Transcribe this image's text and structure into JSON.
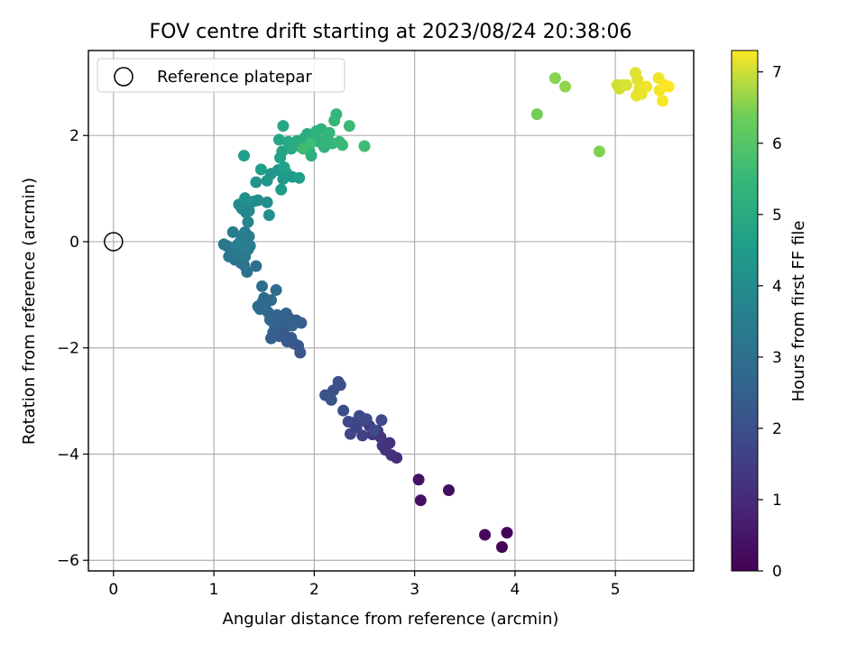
{
  "chart_data": {
    "type": "scatter",
    "title": "FOV centre drift starting at 2023/08/24 20:38:06",
    "xlabel": "Angular distance from reference (arcmin)",
    "ylabel": "Rotation from reference (arcmin)",
    "xlim": [
      -0.25,
      5.78
    ],
    "ylim": [
      -6.2,
      3.6
    ],
    "xticks": [
      0,
      1,
      2,
      3,
      4,
      5
    ],
    "yticks": [
      -6,
      -4,
      -2,
      0,
      2
    ],
    "xtick_labels": [
      "0",
      "1",
      "2",
      "3",
      "4",
      "5"
    ],
    "ytick_labels": [
      "−6",
      "−4",
      "−2",
      "0",
      "2"
    ],
    "grid": true,
    "legend": {
      "label": "Reference platepar",
      "placement": "top-left"
    },
    "reference_point": {
      "x": 0,
      "y": 0
    },
    "colorbar": {
      "label": "Hours from first FF file",
      "colormap": "viridis",
      "range": [
        0,
        7.3
      ],
      "ticks": [
        0,
        1,
        2,
        3,
        4,
        5,
        6,
        7
      ],
      "tick_labels": [
        "0",
        "1",
        "2",
        "3",
        "4",
        "5",
        "6",
        "7"
      ]
    },
    "points": [
      {
        "x": 3.87,
        "y": -5.75,
        "h": 0.05
      },
      {
        "x": 3.92,
        "y": -5.48,
        "h": 0.1
      },
      {
        "x": 3.7,
        "y": -5.52,
        "h": 0.15
      },
      {
        "x": 3.34,
        "y": -4.68,
        "h": 0.3
      },
      {
        "x": 3.06,
        "y": -4.87,
        "h": 0.35
      },
      {
        "x": 3.04,
        "y": -4.48,
        "h": 0.4
      },
      {
        "x": 2.82,
        "y": -4.07,
        "h": 1.05
      },
      {
        "x": 2.77,
        "y": -4.02,
        "h": 1.1
      },
      {
        "x": 2.75,
        "y": -3.79,
        "h": 1.15
      },
      {
        "x": 2.68,
        "y": -3.84,
        "h": 1.2
      },
      {
        "x": 2.71,
        "y": -3.92,
        "h": 1.25
      },
      {
        "x": 2.66,
        "y": -3.68,
        "h": 1.3
      },
      {
        "x": 2.63,
        "y": -3.56,
        "h": 1.35
      },
      {
        "x": 2.58,
        "y": -3.63,
        "h": 1.4
      },
      {
        "x": 2.55,
        "y": -3.47,
        "h": 1.45
      },
      {
        "x": 2.51,
        "y": -3.38,
        "h": 1.5
      },
      {
        "x": 2.48,
        "y": -3.65,
        "h": 1.55
      },
      {
        "x": 2.46,
        "y": -3.3,
        "h": 1.6
      },
      {
        "x": 2.42,
        "y": -3.5,
        "h": 1.65
      },
      {
        "x": 2.39,
        "y": -3.41,
        "h": 1.7
      },
      {
        "x": 2.36,
        "y": -3.62,
        "h": 1.75
      },
      {
        "x": 2.34,
        "y": -3.39,
        "h": 1.8
      },
      {
        "x": 2.67,
        "y": -3.36,
        "h": 1.82
      },
      {
        "x": 2.6,
        "y": -3.55,
        "h": 1.85
      },
      {
        "x": 2.52,
        "y": -3.34,
        "h": 1.88
      },
      {
        "x": 2.45,
        "y": -3.28,
        "h": 1.9
      },
      {
        "x": 2.29,
        "y": -3.18,
        "h": 1.95
      },
      {
        "x": 2.24,
        "y": -2.64,
        "h": 2.0
      },
      {
        "x": 2.26,
        "y": -2.7,
        "h": 2.02
      },
      {
        "x": 2.19,
        "y": -2.8,
        "h": 2.05
      },
      {
        "x": 2.17,
        "y": -2.98,
        "h": 2.08
      },
      {
        "x": 2.11,
        "y": -2.89,
        "h": 2.1
      },
      {
        "x": 1.86,
        "y": -2.09,
        "h": 2.2
      },
      {
        "x": 1.84,
        "y": -1.96,
        "h": 2.22
      },
      {
        "x": 1.8,
        "y": -1.92,
        "h": 2.25
      },
      {
        "x": 1.77,
        "y": -1.81,
        "h": 2.28
      },
      {
        "x": 1.73,
        "y": -1.88,
        "h": 2.3
      },
      {
        "x": 1.7,
        "y": -1.73,
        "h": 2.32
      },
      {
        "x": 1.68,
        "y": -1.66,
        "h": 2.35
      },
      {
        "x": 1.65,
        "y": -1.78,
        "h": 2.38
      },
      {
        "x": 1.62,
        "y": -1.58,
        "h": 2.4
      },
      {
        "x": 1.59,
        "y": -1.71,
        "h": 2.42
      },
      {
        "x": 1.57,
        "y": -1.82,
        "h": 2.45
      },
      {
        "x": 1.87,
        "y": -1.53,
        "h": 2.48
      },
      {
        "x": 1.82,
        "y": -1.48,
        "h": 2.5
      },
      {
        "x": 1.78,
        "y": -1.58,
        "h": 2.52
      },
      {
        "x": 1.74,
        "y": -1.42,
        "h": 2.55
      },
      {
        "x": 1.72,
        "y": -1.35,
        "h": 2.58
      },
      {
        "x": 1.69,
        "y": -1.5,
        "h": 2.6
      },
      {
        "x": 1.66,
        "y": -1.44,
        "h": 2.62
      },
      {
        "x": 1.63,
        "y": -1.38,
        "h": 2.65
      },
      {
        "x": 1.6,
        "y": -1.55,
        "h": 2.68
      },
      {
        "x": 1.56,
        "y": -1.47,
        "h": 2.7
      },
      {
        "x": 1.54,
        "y": -1.33,
        "h": 2.72
      },
      {
        "x": 1.51,
        "y": -1.22,
        "h": 2.75
      },
      {
        "x": 1.48,
        "y": -1.15,
        "h": 2.78
      },
      {
        "x": 1.46,
        "y": -1.27,
        "h": 2.8
      },
      {
        "x": 1.44,
        "y": -1.22,
        "h": 2.82
      },
      {
        "x": 1.5,
        "y": -1.06,
        "h": 2.84
      },
      {
        "x": 1.57,
        "y": -1.1,
        "h": 2.86
      },
      {
        "x": 1.62,
        "y": -0.91,
        "h": 2.88
      },
      {
        "x": 1.48,
        "y": -0.84,
        "h": 2.9
      },
      {
        "x": 1.42,
        "y": -0.46,
        "h": 3.0
      },
      {
        "x": 1.33,
        "y": -0.57,
        "h": 3.05
      },
      {
        "x": 1.3,
        "y": -0.44,
        "h": 3.08
      },
      {
        "x": 1.27,
        "y": -0.4,
        "h": 3.1
      },
      {
        "x": 1.24,
        "y": -0.3,
        "h": 3.12
      },
      {
        "x": 1.21,
        "y": -0.34,
        "h": 3.15
      },
      {
        "x": 1.18,
        "y": -0.22,
        "h": 3.18
      },
      {
        "x": 1.15,
        "y": -0.28,
        "h": 3.2
      },
      {
        "x": 1.13,
        "y": -0.08,
        "h": 3.22
      },
      {
        "x": 1.1,
        "y": -0.05,
        "h": 3.25
      },
      {
        "x": 1.16,
        "y": -0.12,
        "h": 3.28
      },
      {
        "x": 1.21,
        "y": -0.18,
        "h": 3.3
      },
      {
        "x": 1.26,
        "y": -0.24,
        "h": 3.32
      },
      {
        "x": 1.31,
        "y": -0.28,
        "h": 3.35
      },
      {
        "x": 1.34,
        "y": -0.15,
        "h": 3.38
      },
      {
        "x": 1.36,
        "y": -0.08,
        "h": 3.4
      },
      {
        "x": 1.33,
        "y": 0.05,
        "h": 3.42
      },
      {
        "x": 1.29,
        "y": 0.12,
        "h": 3.45
      },
      {
        "x": 1.31,
        "y": 0.18,
        "h": 3.48
      },
      {
        "x": 1.35,
        "y": 0.1,
        "h": 3.5
      },
      {
        "x": 1.19,
        "y": 0.18,
        "h": 3.52
      },
      {
        "x": 1.27,
        "y": 0.02,
        "h": 3.55
      },
      {
        "x": 1.24,
        "y": -0.05,
        "h": 3.58
      },
      {
        "x": 1.34,
        "y": 0.37,
        "h": 3.7
      },
      {
        "x": 1.32,
        "y": 0.55,
        "h": 3.75
      },
      {
        "x": 1.28,
        "y": 0.62,
        "h": 3.8
      },
      {
        "x": 1.35,
        "y": 0.58,
        "h": 3.85
      },
      {
        "x": 1.25,
        "y": 0.7,
        "h": 3.9
      },
      {
        "x": 1.3,
        "y": 0.75,
        "h": 3.95
      },
      {
        "x": 1.4,
        "y": 0.76,
        "h": 4.0
      },
      {
        "x": 1.44,
        "y": 0.78,
        "h": 4.02
      },
      {
        "x": 1.53,
        "y": 0.74,
        "h": 4.05
      },
      {
        "x": 1.55,
        "y": 0.5,
        "h": 4.08
      },
      {
        "x": 1.31,
        "y": 0.82,
        "h": 4.1
      },
      {
        "x": 1.42,
        "y": 1.12,
        "h": 4.2
      },
      {
        "x": 1.53,
        "y": 1.15,
        "h": 4.25
      },
      {
        "x": 1.57,
        "y": 1.28,
        "h": 4.3
      },
      {
        "x": 1.64,
        "y": 1.35,
        "h": 4.35
      },
      {
        "x": 1.69,
        "y": 1.18,
        "h": 4.4
      },
      {
        "x": 1.72,
        "y": 1.3,
        "h": 4.45
      },
      {
        "x": 1.78,
        "y": 1.22,
        "h": 4.5
      },
      {
        "x": 1.67,
        "y": 0.98,
        "h": 4.52
      },
      {
        "x": 1.47,
        "y": 1.36,
        "h": 4.55
      },
      {
        "x": 1.3,
        "y": 1.62,
        "h": 4.58
      },
      {
        "x": 1.85,
        "y": 1.2,
        "h": 4.62
      },
      {
        "x": 1.7,
        "y": 1.4,
        "h": 4.65
      },
      {
        "x": 1.66,
        "y": 1.58,
        "h": 4.7
      },
      {
        "x": 1.68,
        "y": 1.7,
        "h": 4.75
      },
      {
        "x": 1.65,
        "y": 1.92,
        "h": 4.8
      },
      {
        "x": 1.69,
        "y": 2.18,
        "h": 4.85
      },
      {
        "x": 1.74,
        "y": 1.88,
        "h": 4.9
      },
      {
        "x": 1.77,
        "y": 1.75,
        "h": 4.95
      },
      {
        "x": 1.8,
        "y": 1.82,
        "h": 5.0
      },
      {
        "x": 1.83,
        "y": 1.9,
        "h": 5.03
      },
      {
        "x": 1.87,
        "y": 1.78,
        "h": 5.06
      },
      {
        "x": 1.9,
        "y": 1.95,
        "h": 5.09
      },
      {
        "x": 1.93,
        "y": 2.03,
        "h": 5.12
      },
      {
        "x": 1.95,
        "y": 1.72,
        "h": 5.15
      },
      {
        "x": 1.97,
        "y": 1.62,
        "h": 5.18
      },
      {
        "x": 2.0,
        "y": 1.98,
        "h": 5.21
      },
      {
        "x": 2.02,
        "y": 2.08,
        "h": 5.24
      },
      {
        "x": 2.05,
        "y": 1.88,
        "h": 5.27
      },
      {
        "x": 2.07,
        "y": 2.12,
        "h": 5.3
      },
      {
        "x": 2.1,
        "y": 1.78,
        "h": 5.33
      },
      {
        "x": 2.12,
        "y": 1.95,
        "h": 5.36
      },
      {
        "x": 2.15,
        "y": 2.05,
        "h": 5.39
      },
      {
        "x": 2.18,
        "y": 1.85,
        "h": 5.42
      },
      {
        "x": 2.2,
        "y": 2.28,
        "h": 5.45
      },
      {
        "x": 2.22,
        "y": 2.4,
        "h": 5.48
      },
      {
        "x": 2.25,
        "y": 1.88,
        "h": 5.5
      },
      {
        "x": 2.28,
        "y": 1.82,
        "h": 5.53
      },
      {
        "x": 2.35,
        "y": 2.18,
        "h": 5.56
      },
      {
        "x": 2.5,
        "y": 1.8,
        "h": 5.6
      },
      {
        "x": 1.96,
        "y": 1.85,
        "h": 5.62
      },
      {
        "x": 1.89,
        "y": 1.75,
        "h": 5.65
      },
      {
        "x": 4.22,
        "y": 2.4,
        "h": 6.4
      },
      {
        "x": 4.4,
        "y": 3.08,
        "h": 6.55
      },
      {
        "x": 4.5,
        "y": 2.92,
        "h": 6.6
      },
      {
        "x": 4.84,
        "y": 1.7,
        "h": 6.5
      },
      {
        "x": 5.02,
        "y": 2.95,
        "h": 7.0
      },
      {
        "x": 5.04,
        "y": 2.88,
        "h": 7.02
      },
      {
        "x": 5.08,
        "y": 2.95,
        "h": 7.05
      },
      {
        "x": 5.11,
        "y": 2.95,
        "h": 7.07
      },
      {
        "x": 5.2,
        "y": 3.18,
        "h": 7.1
      },
      {
        "x": 5.22,
        "y": 3.05,
        "h": 7.12
      },
      {
        "x": 5.24,
        "y": 2.9,
        "h": 7.14
      },
      {
        "x": 5.21,
        "y": 2.75,
        "h": 7.16
      },
      {
        "x": 5.26,
        "y": 2.78,
        "h": 7.18
      },
      {
        "x": 5.31,
        "y": 2.92,
        "h": 7.2
      },
      {
        "x": 5.43,
        "y": 3.08,
        "h": 7.22
      },
      {
        "x": 5.44,
        "y": 2.85,
        "h": 7.24
      },
      {
        "x": 5.47,
        "y": 2.65,
        "h": 7.26
      },
      {
        "x": 5.49,
        "y": 2.95,
        "h": 7.28
      },
      {
        "x": 5.53,
        "y": 2.92,
        "h": 7.3
      }
    ]
  }
}
